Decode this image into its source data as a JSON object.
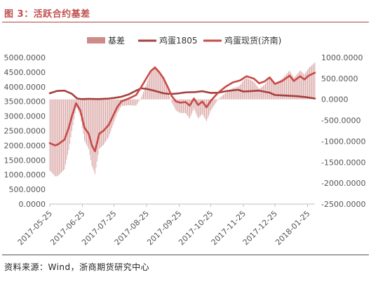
{
  "caption": {
    "title": "图 3：活跃合约基差",
    "source": "资料来源：Wind，浙商期货研究中心"
  },
  "colors": {
    "basis_bar": "#cd8a89",
    "futures_line": "#a5403c",
    "spot_line": "#c74b48",
    "accent": "#c0504d"
  },
  "chart_data": {
    "type": "bar+line",
    "title": "",
    "legend": [
      "基差",
      "鸡蛋1805",
      "鸡蛋现货(济南)"
    ],
    "legend_position": "top",
    "grid": false,
    "x_start": "2017-05-25",
    "x_end": "2018-02-01",
    "x_ticks": [
      "2017-05-25",
      "2017-06-25",
      "2017-07-25",
      "2017-08-25",
      "2017-09-25",
      "2017-10-25",
      "2017-11-25",
      "2017-12-25",
      "2018-01-25"
    ],
    "y_left": {
      "min": 0,
      "max": 5000,
      "ticks": [
        "0.0000",
        "500.0000",
        "1000.0000",
        "1500.0000",
        "2000.0000",
        "2500.0000",
        "3000.0000",
        "3500.0000",
        "4000.0000",
        "4500.0000",
        "5000.0000"
      ]
    },
    "y_right": {
      "min": -2500,
      "max": 1000,
      "ticks": [
        "1000.0000",
        "500.0000",
        "0.0000",
        "-500.0000",
        "-1000.0000",
        "-1500.0000",
        "-2000.0000",
        "-2500.0000"
      ]
    },
    "series": [
      {
        "name": "鸡蛋1805",
        "axis": "left",
        "kind": "line",
        "points": [
          [
            "2017-05-25",
            3780
          ],
          [
            "2017-06-01",
            3860
          ],
          [
            "2017-06-08",
            3870
          ],
          [
            "2017-06-15",
            3760
          ],
          [
            "2017-06-20",
            3600
          ],
          [
            "2017-06-25",
            3580
          ],
          [
            "2017-07-01",
            3590
          ],
          [
            "2017-07-10",
            3580
          ],
          [
            "2017-07-20",
            3600
          ],
          [
            "2017-07-25",
            3620
          ],
          [
            "2017-08-01",
            3660
          ],
          [
            "2017-08-08",
            3740
          ],
          [
            "2017-08-15",
            3870
          ],
          [
            "2017-08-20",
            3950
          ],
          [
            "2017-08-25",
            3930
          ],
          [
            "2017-09-01",
            3870
          ],
          [
            "2017-09-10",
            3780
          ],
          [
            "2017-09-15",
            3760
          ],
          [
            "2017-09-20",
            3760
          ],
          [
            "2017-09-25",
            3780
          ],
          [
            "2017-10-01",
            3810
          ],
          [
            "2017-10-10",
            3820
          ],
          [
            "2017-10-17",
            3850
          ],
          [
            "2017-10-25",
            3790
          ],
          [
            "2017-11-01",
            3800
          ],
          [
            "2017-11-10",
            3860
          ],
          [
            "2017-11-20",
            3900
          ],
          [
            "2017-11-25",
            3840
          ],
          [
            "2017-12-01",
            3850
          ],
          [
            "2017-12-10",
            3870
          ],
          [
            "2017-12-20",
            3800
          ],
          [
            "2017-12-25",
            3720
          ],
          [
            "2018-01-05",
            3700
          ],
          [
            "2018-01-15",
            3680
          ],
          [
            "2018-01-25",
            3640
          ],
          [
            "2018-02-01",
            3600
          ]
        ]
      },
      {
        "name": "鸡蛋现货(济南)",
        "axis": "left",
        "kind": "line",
        "points": [
          [
            "2017-05-25",
            2080
          ],
          [
            "2017-05-30",
            2000
          ],
          [
            "2017-06-02",
            2040
          ],
          [
            "2017-06-08",
            2200
          ],
          [
            "2017-06-12",
            2600
          ],
          [
            "2017-06-15",
            3000
          ],
          [
            "2017-06-19",
            3440
          ],
          [
            "2017-06-23",
            3200
          ],
          [
            "2017-06-27",
            2600
          ],
          [
            "2017-07-01",
            2400
          ],
          [
            "2017-07-04",
            2000
          ],
          [
            "2017-07-07",
            1800
          ],
          [
            "2017-07-11",
            2400
          ],
          [
            "2017-07-15",
            2500
          ],
          [
            "2017-07-20",
            2700
          ],
          [
            "2017-07-24",
            3000
          ],
          [
            "2017-07-28",
            3300
          ],
          [
            "2017-08-01",
            3500
          ],
          [
            "2017-08-08",
            3600
          ],
          [
            "2017-08-15",
            3720
          ],
          [
            "2017-08-20",
            4000
          ],
          [
            "2017-08-25",
            4300
          ],
          [
            "2017-08-29",
            4540
          ],
          [
            "2017-09-02",
            4660
          ],
          [
            "2017-09-06",
            4500
          ],
          [
            "2017-09-10",
            4300
          ],
          [
            "2017-09-14",
            4000
          ],
          [
            "2017-09-18",
            3680
          ],
          [
            "2017-09-22",
            3500
          ],
          [
            "2017-09-26",
            3460
          ],
          [
            "2017-10-01",
            3480
          ],
          [
            "2017-10-05",
            3360
          ],
          [
            "2017-10-09",
            3600
          ],
          [
            "2017-10-13",
            3380
          ],
          [
            "2017-10-17",
            3500
          ],
          [
            "2017-10-21",
            3300
          ],
          [
            "2017-10-25",
            3520
          ],
          [
            "2017-11-01",
            3800
          ],
          [
            "2017-11-08",
            4000
          ],
          [
            "2017-11-15",
            4150
          ],
          [
            "2017-11-22",
            4220
          ],
          [
            "2017-11-28",
            4360
          ],
          [
            "2017-12-05",
            4280
          ],
          [
            "2017-12-10",
            4120
          ],
          [
            "2017-12-15",
            4180
          ],
          [
            "2017-12-20",
            4320
          ],
          [
            "2017-12-25",
            4100
          ],
          [
            "2018-01-01",
            4200
          ],
          [
            "2018-01-08",
            4380
          ],
          [
            "2018-01-12",
            4200
          ],
          [
            "2018-01-18",
            4360
          ],
          [
            "2018-01-22",
            4250
          ],
          [
            "2018-01-26",
            4380
          ],
          [
            "2018-02-01",
            4480
          ]
        ]
      }
    ],
    "basis": {
      "name": "基差",
      "axis": "right",
      "kind": "bar",
      "definition": "鸡蛋现货(济南) - 鸡蛋1805",
      "note": "bars drawn daily from the two price series"
    }
  }
}
